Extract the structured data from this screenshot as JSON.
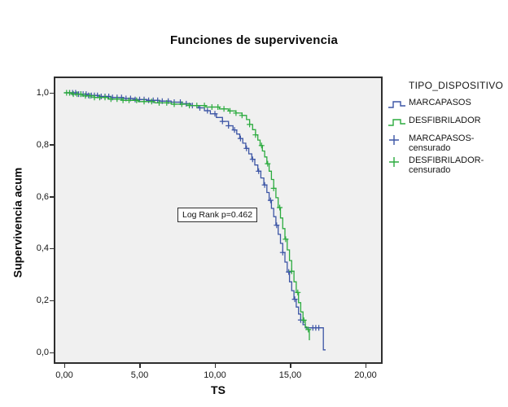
{
  "figure": {
    "title": "Funciones de supervivencia",
    "x_axis_title": "TS",
    "y_axis_title": "Supervivencia acum",
    "annotation_text": "Log Rank p=0.462",
    "legend": {
      "title": "TIPO_DISPOSITIVO",
      "items": [
        {
          "label": "MARCAPASOS",
          "symbol": "step-line",
          "color": "#3c55a5"
        },
        {
          "label": "DESFIBRILADOR",
          "symbol": "step-line",
          "color": "#2cab3f"
        },
        {
          "label": "MARCAPASOS-censurado",
          "symbol": "plus",
          "color": "#3c55a5"
        },
        {
          "label": "DESFIBRILADOR-censurado",
          "symbol": "plus",
          "color": "#2cab3f"
        }
      ]
    }
  },
  "chart_data": {
    "type": "line",
    "subtype": "kaplan-meier-step",
    "title": "Funciones de supervivencia",
    "xlabel": "TS",
    "ylabel": "Supervivencia acum",
    "xlim": [
      0,
      20
    ],
    "ylim": [
      0,
      1
    ],
    "grid": false,
    "legend_position": "right",
    "plot_background": "#f0f0f0",
    "x_ticks": {
      "values": [
        0,
        5,
        10,
        15,
        20
      ],
      "labels": [
        "0,00",
        "5,00",
        "10,00",
        "15,00",
        "20,00"
      ]
    },
    "y_ticks": {
      "values": [
        0,
        0.2,
        0.4,
        0.6,
        0.8,
        1.0
      ],
      "labels": [
        "0,0",
        "0,2",
        "0,4",
        "0,6",
        "0,8",
        "1,0"
      ]
    },
    "annotation": {
      "text": "Log Rank p=0.462",
      "x": 7.5,
      "y": 0.53
    },
    "series": [
      {
        "name": "MARCAPASOS",
        "color": "#3c55a5",
        "steps": [
          [
            0,
            1.0
          ],
          [
            0.85,
            0.995
          ],
          [
            1.6,
            0.99
          ],
          [
            2.3,
            0.986
          ],
          [
            3.1,
            0.982
          ],
          [
            3.9,
            0.978
          ],
          [
            4.7,
            0.974
          ],
          [
            5.5,
            0.971
          ],
          [
            6.3,
            0.968
          ],
          [
            7.1,
            0.964
          ],
          [
            7.8,
            0.958
          ],
          [
            8.4,
            0.951
          ],
          [
            8.9,
            0.942
          ],
          [
            9.3,
            0.931
          ],
          [
            9.7,
            0.919
          ],
          [
            10.1,
            0.905
          ],
          [
            10.5,
            0.89
          ],
          [
            10.9,
            0.873
          ],
          [
            11.2,
            0.857
          ],
          [
            11.45,
            0.841
          ],
          [
            11.65,
            0.824
          ],
          [
            11.85,
            0.806
          ],
          [
            12.05,
            0.786
          ],
          [
            12.25,
            0.765
          ],
          [
            12.45,
            0.744
          ],
          [
            12.65,
            0.722
          ],
          [
            12.85,
            0.698
          ],
          [
            13.05,
            0.672
          ],
          [
            13.25,
            0.645
          ],
          [
            13.45,
            0.616
          ],
          [
            13.6,
            0.586
          ],
          [
            13.75,
            0.555
          ],
          [
            13.9,
            0.523
          ],
          [
            14.05,
            0.49
          ],
          [
            14.2,
            0.455
          ],
          [
            14.35,
            0.42
          ],
          [
            14.5,
            0.385
          ],
          [
            14.65,
            0.348
          ],
          [
            14.8,
            0.31
          ],
          [
            14.95,
            0.272
          ],
          [
            15.1,
            0.238
          ],
          [
            15.25,
            0.205
          ],
          [
            15.4,
            0.175
          ],
          [
            15.55,
            0.148
          ],
          [
            15.7,
            0.125
          ],
          [
            15.85,
            0.107
          ],
          [
            16.0,
            0.095
          ],
          [
            17.2,
            0.01
          ],
          [
            17.35,
            0.01
          ]
        ],
        "censored_t": [
          0.35,
          0.55,
          0.75,
          0.95,
          1.1,
          1.25,
          1.45,
          1.6,
          1.8,
          2.0,
          2.2,
          2.45,
          2.7,
          2.95,
          3.2,
          3.5,
          3.8,
          4.1,
          4.4,
          4.7,
          5.0,
          5.3,
          5.6,
          5.9,
          6.2,
          6.5,
          6.9,
          7.3,
          7.7,
          8.1,
          8.5,
          9.0,
          9.5,
          10.0,
          10.5,
          10.9,
          11.3,
          11.7,
          12.1,
          12.5,
          12.9,
          13.3,
          13.7,
          14.1,
          14.5,
          14.9,
          15.3,
          15.7,
          16.5,
          16.7,
          16.9
        ]
      },
      {
        "name": "DESFIBRILADOR",
        "color": "#2cab3f",
        "steps": [
          [
            0,
            1.0
          ],
          [
            0.5,
            0.995
          ],
          [
            1.2,
            0.988
          ],
          [
            2.0,
            0.982
          ],
          [
            2.9,
            0.976
          ],
          [
            3.9,
            0.971
          ],
          [
            4.9,
            0.966
          ],
          [
            6.0,
            0.961
          ],
          [
            7.1,
            0.956
          ],
          [
            8.3,
            0.951
          ],
          [
            9.4,
            0.945
          ],
          [
            10.3,
            0.938
          ],
          [
            10.9,
            0.93
          ],
          [
            11.4,
            0.922
          ],
          [
            11.8,
            0.913
          ],
          [
            12.1,
            0.897
          ],
          [
            12.3,
            0.878
          ],
          [
            12.5,
            0.858
          ],
          [
            12.7,
            0.838
          ],
          [
            12.85,
            0.818
          ],
          [
            13.0,
            0.797
          ],
          [
            13.15,
            0.776
          ],
          [
            13.3,
            0.753
          ],
          [
            13.45,
            0.727
          ],
          [
            13.6,
            0.698
          ],
          [
            13.75,
            0.666
          ],
          [
            13.9,
            0.632
          ],
          [
            14.05,
            0.596
          ],
          [
            14.2,
            0.558
          ],
          [
            14.35,
            0.518
          ],
          [
            14.5,
            0.477
          ],
          [
            14.65,
            0.436
          ],
          [
            14.8,
            0.395
          ],
          [
            14.95,
            0.354
          ],
          [
            15.1,
            0.313
          ],
          [
            15.25,
            0.272
          ],
          [
            15.4,
            0.231
          ],
          [
            15.55,
            0.192
          ],
          [
            15.7,
            0.156
          ],
          [
            15.85,
            0.124
          ],
          [
            16.0,
            0.098
          ],
          [
            16.1,
            0.088
          ],
          [
            16.27,
            0.047
          ]
        ],
        "censored_t": [
          0.15,
          0.35,
          0.6,
          0.85,
          1.1,
          1.4,
          1.7,
          2.0,
          2.35,
          2.7,
          3.1,
          3.5,
          3.9,
          4.3,
          4.8,
          5.3,
          5.8,
          6.3,
          6.8,
          7.3,
          7.8,
          8.3,
          8.8,
          9.3,
          9.8,
          10.2,
          10.6,
          11.0,
          11.4,
          11.8,
          12.3,
          12.7,
          13.1,
          13.5,
          13.9,
          14.3,
          14.7,
          15.1,
          15.5,
          15.9,
          16.2
        ]
      }
    ]
  }
}
